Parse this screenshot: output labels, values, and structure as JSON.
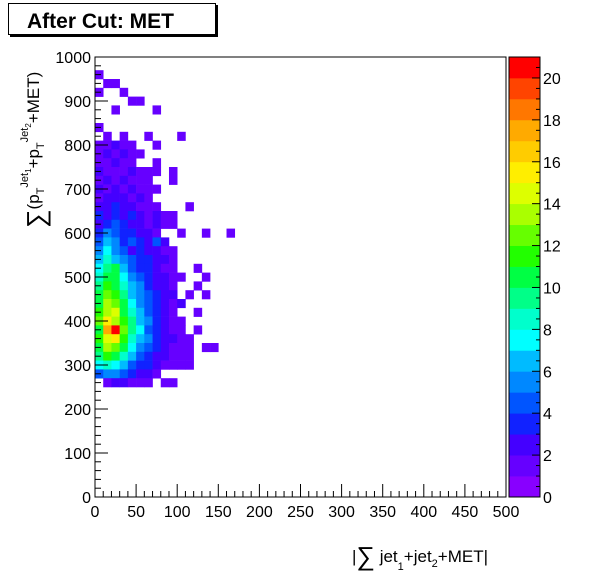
{
  "chart_data": {
    "type": "heatmap",
    "title": "After Cut: MET",
    "xlabel": {
      "prefix": "|",
      "sum": "∑",
      "t1": " jet",
      "s1": "1",
      "t2": "+jet",
      "s2": "2",
      "t3": "+MET|"
    },
    "ylabel": {
      "sum": "∑",
      "t1": "(p",
      "s1": "T",
      "sup1": "Jet",
      "sup1s": "1",
      "t2": "+p",
      "s2": "T",
      "sup2": "Jet",
      "sup2s": "2",
      "t3": "+MET)"
    },
    "xlim": [
      0,
      500
    ],
    "ylim": [
      0,
      1000
    ],
    "bin_size": [
      10,
      20
    ],
    "xticks": [
      "0",
      "50",
      "100",
      "150",
      "200",
      "250",
      "300",
      "350",
      "400",
      "450",
      "500"
    ],
    "yticks": [
      "0",
      "100",
      "200",
      "300",
      "400",
      "500",
      "600",
      "700",
      "800",
      "900",
      "1000"
    ],
    "zlim": [
      0,
      21
    ],
    "zticks": [
      "0",
      "2",
      "4",
      "6",
      "8",
      "10",
      "12",
      "14",
      "16",
      "18",
      "20"
    ],
    "palette": [
      "#8800ff",
      "#6600ff",
      "#4400ff",
      "#1122ff",
      "#0055ff",
      "#0088ff",
      "#00bbff",
      "#00ffff",
      "#00ffcc",
      "#00ff88",
      "#00ff44",
      "#22ff00",
      "#66ff00",
      "#aaff00",
      "#ddff00",
      "#ffee00",
      "#ffcc00",
      "#ffaa00",
      "#ff7700",
      "#ff4400",
      "#ff0000"
    ],
    "cells": [
      [
        0,
        950,
        1
      ],
      [
        10,
        930,
        1
      ],
      [
        20,
        930,
        1
      ],
      [
        30,
        910,
        1
      ],
      [
        40,
        890,
        1
      ],
      [
        50,
        890,
        1
      ],
      [
        0,
        910,
        1
      ],
      [
        20,
        870,
        1
      ],
      [
        70,
        870,
        1
      ],
      [
        0,
        830,
        1
      ],
      [
        10,
        810,
        1
      ],
      [
        30,
        810,
        1
      ],
      [
        60,
        810,
        1
      ],
      [
        100,
        810,
        1
      ],
      [
        0,
        790,
        1
      ],
      [
        10,
        790,
        1
      ],
      [
        20,
        790,
        2
      ],
      [
        30,
        790,
        1
      ],
      [
        40,
        790,
        1
      ],
      [
        70,
        790,
        1
      ],
      [
        0,
        770,
        1
      ],
      [
        10,
        770,
        2
      ],
      [
        20,
        770,
        1
      ],
      [
        30,
        770,
        2
      ],
      [
        40,
        770,
        1
      ],
      [
        50,
        770,
        1
      ],
      [
        0,
        750,
        1
      ],
      [
        10,
        750,
        1
      ],
      [
        20,
        750,
        2
      ],
      [
        30,
        750,
        1
      ],
      [
        40,
        750,
        1
      ],
      [
        70,
        750,
        1
      ],
      [
        0,
        730,
        2
      ],
      [
        10,
        730,
        1
      ],
      [
        20,
        730,
        1
      ],
      [
        30,
        730,
        1
      ],
      [
        40,
        730,
        2
      ],
      [
        50,
        730,
        1
      ],
      [
        60,
        730,
        1
      ],
      [
        70,
        730,
        1
      ],
      [
        90,
        730,
        1
      ],
      [
        0,
        710,
        1
      ],
      [
        10,
        710,
        2
      ],
      [
        20,
        710,
        1
      ],
      [
        30,
        710,
        2
      ],
      [
        40,
        710,
        1
      ],
      [
        50,
        710,
        1
      ],
      [
        60,
        710,
        1
      ],
      [
        90,
        710,
        1
      ],
      [
        0,
        690,
        2
      ],
      [
        10,
        690,
        1
      ],
      [
        20,
        690,
        2
      ],
      [
        30,
        690,
        1
      ],
      [
        40,
        690,
        2
      ],
      [
        50,
        690,
        1
      ],
      [
        60,
        690,
        1
      ],
      [
        70,
        690,
        1
      ],
      [
        0,
        670,
        1
      ],
      [
        10,
        670,
        2
      ],
      [
        20,
        670,
        2
      ],
      [
        30,
        670,
        2
      ],
      [
        40,
        670,
        1
      ],
      [
        50,
        670,
        2
      ],
      [
        60,
        670,
        1
      ],
      [
        0,
        650,
        2
      ],
      [
        10,
        650,
        2
      ],
      [
        20,
        650,
        3
      ],
      [
        30,
        650,
        2
      ],
      [
        40,
        650,
        2
      ],
      [
        50,
        650,
        1
      ],
      [
        60,
        650,
        1
      ],
      [
        70,
        650,
        1
      ],
      [
        110,
        650,
        1
      ],
      [
        0,
        630,
        3
      ],
      [
        10,
        630,
        2
      ],
      [
        20,
        630,
        3
      ],
      [
        30,
        630,
        2
      ],
      [
        40,
        630,
        3
      ],
      [
        50,
        630,
        2
      ],
      [
        60,
        630,
        1
      ],
      [
        70,
        630,
        2
      ],
      [
        80,
        630,
        1
      ],
      [
        90,
        630,
        1
      ],
      [
        0,
        610,
        2
      ],
      [
        10,
        610,
        3
      ],
      [
        20,
        610,
        4
      ],
      [
        30,
        610,
        3
      ],
      [
        40,
        610,
        2
      ],
      [
        50,
        610,
        2
      ],
      [
        60,
        610,
        1
      ],
      [
        70,
        610,
        2
      ],
      [
        80,
        610,
        1
      ],
      [
        90,
        610,
        1
      ],
      [
        0,
        590,
        3
      ],
      [
        10,
        590,
        5
      ],
      [
        20,
        590,
        4
      ],
      [
        30,
        590,
        3
      ],
      [
        40,
        590,
        3
      ],
      [
        50,
        590,
        2
      ],
      [
        60,
        590,
        2
      ],
      [
        70,
        590,
        1
      ],
      [
        100,
        590,
        1
      ],
      [
        130,
        590,
        1
      ],
      [
        160,
        590,
        1
      ],
      [
        0,
        570,
        4
      ],
      [
        10,
        570,
        6
      ],
      [
        20,
        570,
        5
      ],
      [
        30,
        570,
        3
      ],
      [
        40,
        570,
        4
      ],
      [
        50,
        570,
        3
      ],
      [
        60,
        570,
        2
      ],
      [
        70,
        570,
        4
      ],
      [
        80,
        570,
        2
      ],
      [
        0,
        550,
        5
      ],
      [
        10,
        550,
        7
      ],
      [
        20,
        550,
        5
      ],
      [
        30,
        550,
        4
      ],
      [
        40,
        550,
        2
      ],
      [
        50,
        550,
        3
      ],
      [
        60,
        550,
        2
      ],
      [
        70,
        550,
        2
      ],
      [
        80,
        550,
        1
      ],
      [
        90,
        550,
        1
      ],
      [
        0,
        530,
        6
      ],
      [
        10,
        530,
        8
      ],
      [
        20,
        530,
        6
      ],
      [
        30,
        530,
        5
      ],
      [
        40,
        530,
        4
      ],
      [
        50,
        530,
        3
      ],
      [
        60,
        530,
        3
      ],
      [
        70,
        530,
        2
      ],
      [
        80,
        530,
        2
      ],
      [
        90,
        530,
        1
      ],
      [
        0,
        510,
        7
      ],
      [
        10,
        510,
        9
      ],
      [
        20,
        510,
        10
      ],
      [
        30,
        510,
        6
      ],
      [
        40,
        510,
        4
      ],
      [
        50,
        510,
        3
      ],
      [
        60,
        510,
        3
      ],
      [
        70,
        510,
        2
      ],
      [
        80,
        510,
        1
      ],
      [
        90,
        510,
        1
      ],
      [
        120,
        510,
        1
      ],
      [
        0,
        490,
        8
      ],
      [
        10,
        490,
        11
      ],
      [
        20,
        490,
        10
      ],
      [
        30,
        490,
        7
      ],
      [
        40,
        490,
        5
      ],
      [
        50,
        490,
        4
      ],
      [
        60,
        490,
        3
      ],
      [
        70,
        490,
        2
      ],
      [
        80,
        490,
        2
      ],
      [
        90,
        490,
        1
      ],
      [
        100,
        490,
        1
      ],
      [
        130,
        490,
        1
      ],
      [
        0,
        470,
        9
      ],
      [
        10,
        470,
        12
      ],
      [
        20,
        470,
        11
      ],
      [
        30,
        470,
        8
      ],
      [
        40,
        470,
        6
      ],
      [
        50,
        470,
        5
      ],
      [
        60,
        470,
        3
      ],
      [
        70,
        470,
        2
      ],
      [
        80,
        470,
        2
      ],
      [
        90,
        470,
        1
      ],
      [
        120,
        470,
        1
      ],
      [
        0,
        450,
        10
      ],
      [
        10,
        450,
        13
      ],
      [
        20,
        450,
        12
      ],
      [
        30,
        450,
        9
      ],
      [
        40,
        450,
        6
      ],
      [
        50,
        450,
        5
      ],
      [
        60,
        450,
        4
      ],
      [
        70,
        450,
        3
      ],
      [
        80,
        450,
        2
      ],
      [
        90,
        450,
        2
      ],
      [
        110,
        450,
        1
      ],
      [
        130,
        450,
        1
      ],
      [
        0,
        430,
        11
      ],
      [
        10,
        430,
        14
      ],
      [
        20,
        430,
        13
      ],
      [
        30,
        430,
        10
      ],
      [
        40,
        430,
        7
      ],
      [
        50,
        430,
        5
      ],
      [
        60,
        430,
        4
      ],
      [
        70,
        430,
        3
      ],
      [
        80,
        430,
        2
      ],
      [
        90,
        430,
        1
      ],
      [
        100,
        430,
        2
      ],
      [
        0,
        410,
        12
      ],
      [
        10,
        410,
        14
      ],
      [
        20,
        410,
        15
      ],
      [
        30,
        410,
        11
      ],
      [
        40,
        410,
        8
      ],
      [
        50,
        410,
        6
      ],
      [
        60,
        410,
        4
      ],
      [
        70,
        410,
        3
      ],
      [
        80,
        410,
        2
      ],
      [
        90,
        410,
        1
      ],
      [
        120,
        410,
        1
      ],
      [
        0,
        390,
        13
      ],
      [
        10,
        390,
        16
      ],
      [
        20,
        390,
        14
      ],
      [
        30,
        390,
        12
      ],
      [
        40,
        390,
        9
      ],
      [
        50,
        390,
        6
      ],
      [
        60,
        390,
        5
      ],
      [
        70,
        390,
        3
      ],
      [
        80,
        390,
        2
      ],
      [
        90,
        390,
        1
      ],
      [
        100,
        390,
        1
      ],
      [
        0,
        370,
        10
      ],
      [
        10,
        370,
        18
      ],
      [
        20,
        370,
        21
      ],
      [
        30,
        370,
        13
      ],
      [
        40,
        370,
        9
      ],
      [
        50,
        370,
        7
      ],
      [
        60,
        370,
        4
      ],
      [
        70,
        370,
        3
      ],
      [
        80,
        370,
        2
      ],
      [
        90,
        370,
        1
      ],
      [
        100,
        370,
        1
      ],
      [
        120,
        370,
        1
      ],
      [
        0,
        350,
        12
      ],
      [
        10,
        350,
        15
      ],
      [
        20,
        350,
        16
      ],
      [
        30,
        350,
        12
      ],
      [
        40,
        350,
        8
      ],
      [
        50,
        350,
        6
      ],
      [
        60,
        350,
        5
      ],
      [
        70,
        350,
        3
      ],
      [
        80,
        350,
        2
      ],
      [
        90,
        350,
        2
      ],
      [
        100,
        350,
        1
      ],
      [
        110,
        350,
        1
      ],
      [
        0,
        330,
        11
      ],
      [
        10,
        330,
        14
      ],
      [
        20,
        330,
        13
      ],
      [
        30,
        330,
        10
      ],
      [
        40,
        330,
        7
      ],
      [
        50,
        330,
        5
      ],
      [
        60,
        330,
        4
      ],
      [
        70,
        330,
        3
      ],
      [
        80,
        330,
        2
      ],
      [
        90,
        330,
        1
      ],
      [
        100,
        330,
        1
      ],
      [
        110,
        330,
        1
      ],
      [
        130,
        330,
        1
      ],
      [
        140,
        330,
        1
      ],
      [
        0,
        310,
        9
      ],
      [
        10,
        310,
        12
      ],
      [
        20,
        310,
        11
      ],
      [
        30,
        310,
        8
      ],
      [
        40,
        310,
        6
      ],
      [
        50,
        310,
        4
      ],
      [
        60,
        310,
        3
      ],
      [
        70,
        310,
        2
      ],
      [
        80,
        310,
        2
      ],
      [
        90,
        310,
        1
      ],
      [
        100,
        310,
        1
      ],
      [
        110,
        310,
        1
      ],
      [
        0,
        290,
        7
      ],
      [
        10,
        290,
        8
      ],
      [
        20,
        290,
        7
      ],
      [
        30,
        290,
        6
      ],
      [
        40,
        290,
        4
      ],
      [
        50,
        290,
        3
      ],
      [
        60,
        290,
        3
      ],
      [
        70,
        290,
        2
      ],
      [
        80,
        290,
        1
      ],
      [
        90,
        290,
        1
      ],
      [
        100,
        290,
        1
      ],
      [
        110,
        290,
        1
      ],
      [
        0,
        270,
        4
      ],
      [
        10,
        270,
        5
      ],
      [
        20,
        270,
        5
      ],
      [
        30,
        270,
        4
      ],
      [
        40,
        270,
        3
      ],
      [
        50,
        270,
        2
      ],
      [
        60,
        270,
        2
      ],
      [
        70,
        270,
        1
      ],
      [
        10,
        250,
        1
      ],
      [
        20,
        250,
        2
      ],
      [
        30,
        250,
        2
      ],
      [
        40,
        250,
        1
      ],
      [
        50,
        250,
        1
      ],
      [
        60,
        250,
        1
      ],
      [
        80,
        250,
        1
      ],
      [
        90,
        250,
        1
      ]
    ]
  }
}
